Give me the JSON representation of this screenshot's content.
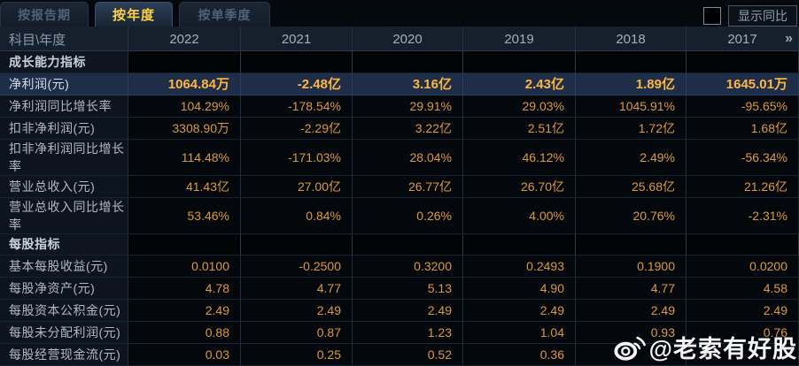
{
  "tabs": [
    {
      "label": "按报告期",
      "active": false
    },
    {
      "label": "按年度",
      "active": true
    },
    {
      "label": "按单季度",
      "active": false
    }
  ],
  "controls": {
    "show_yoy_label": "显示同比",
    "checkbox_checked": false
  },
  "table": {
    "corner_label": "科目\\年度",
    "years": [
      "2022",
      "2021",
      "2020",
      "2019",
      "2018",
      "2017"
    ],
    "more_icon": "»",
    "rows": [
      {
        "type": "section",
        "label": "成长能力指标",
        "values": [
          "",
          "",
          "",
          "",
          "",
          ""
        ]
      },
      {
        "type": "highlight",
        "label": "净利润(元)",
        "values": [
          "1064.84万",
          "-2.48亿",
          "3.16亿",
          "2.43亿",
          "1.89亿",
          "1645.01万"
        ]
      },
      {
        "type": "data",
        "label": "净利润同比增长率",
        "values": [
          "104.29%",
          "-178.54%",
          "29.91%",
          "29.03%",
          "1045.91%",
          "-95.65%"
        ]
      },
      {
        "type": "data",
        "label": "扣非净利润(元)",
        "values": [
          "3308.90万",
          "-2.29亿",
          "3.22亿",
          "2.51亿",
          "1.72亿",
          "1.68亿"
        ]
      },
      {
        "type": "data",
        "label": "扣非净利润同比增长率",
        "values": [
          "114.48%",
          "-171.03%",
          "28.04%",
          "46.12%",
          "2.49%",
          "-56.34%"
        ]
      },
      {
        "type": "data",
        "label": "营业总收入(元)",
        "values": [
          "41.43亿",
          "27.00亿",
          "26.77亿",
          "26.70亿",
          "25.68亿",
          "21.26亿"
        ]
      },
      {
        "type": "data",
        "label": "营业总收入同比增长率",
        "values": [
          "53.46%",
          "0.84%",
          "0.26%",
          "4.00%",
          "20.76%",
          "-2.31%"
        ]
      },
      {
        "type": "section",
        "label": "每股指标",
        "values": [
          "",
          "",
          "",
          "",
          "",
          ""
        ]
      },
      {
        "type": "data",
        "label": "基本每股收益(元)",
        "values": [
          "0.0100",
          "-0.2500",
          "0.3200",
          "0.2493",
          "0.1900",
          "0.0200"
        ]
      },
      {
        "type": "data",
        "label": "每股净资产(元)",
        "values": [
          "4.78",
          "4.77",
          "5.13",
          "4.90",
          "4.77",
          "4.58"
        ]
      },
      {
        "type": "data",
        "label": "每股资本公积金(元)",
        "values": [
          "2.49",
          "2.49",
          "2.49",
          "2.49",
          "2.49",
          "2.49"
        ]
      },
      {
        "type": "data",
        "label": "每股未分配利润(元)",
        "values": [
          "0.88",
          "0.87",
          "1.23",
          "1.04",
          "0.93",
          "0.76"
        ]
      },
      {
        "type": "data",
        "label": "每股经营现金流(元)",
        "values": [
          "0.03",
          "0.25",
          "0.52",
          "0.36",
          "",
          ""
        ]
      }
    ]
  },
  "watermark": {
    "handle": "@老索有好股"
  },
  "colors": {
    "value_orange": "#dd9a3d",
    "highlight_gold": "#ffb640",
    "active_tab_yellow": "#ffd043",
    "highlight_row_bg": "#1e2e48",
    "header_bg": "#16202c",
    "page_bg": "#05080c"
  }
}
